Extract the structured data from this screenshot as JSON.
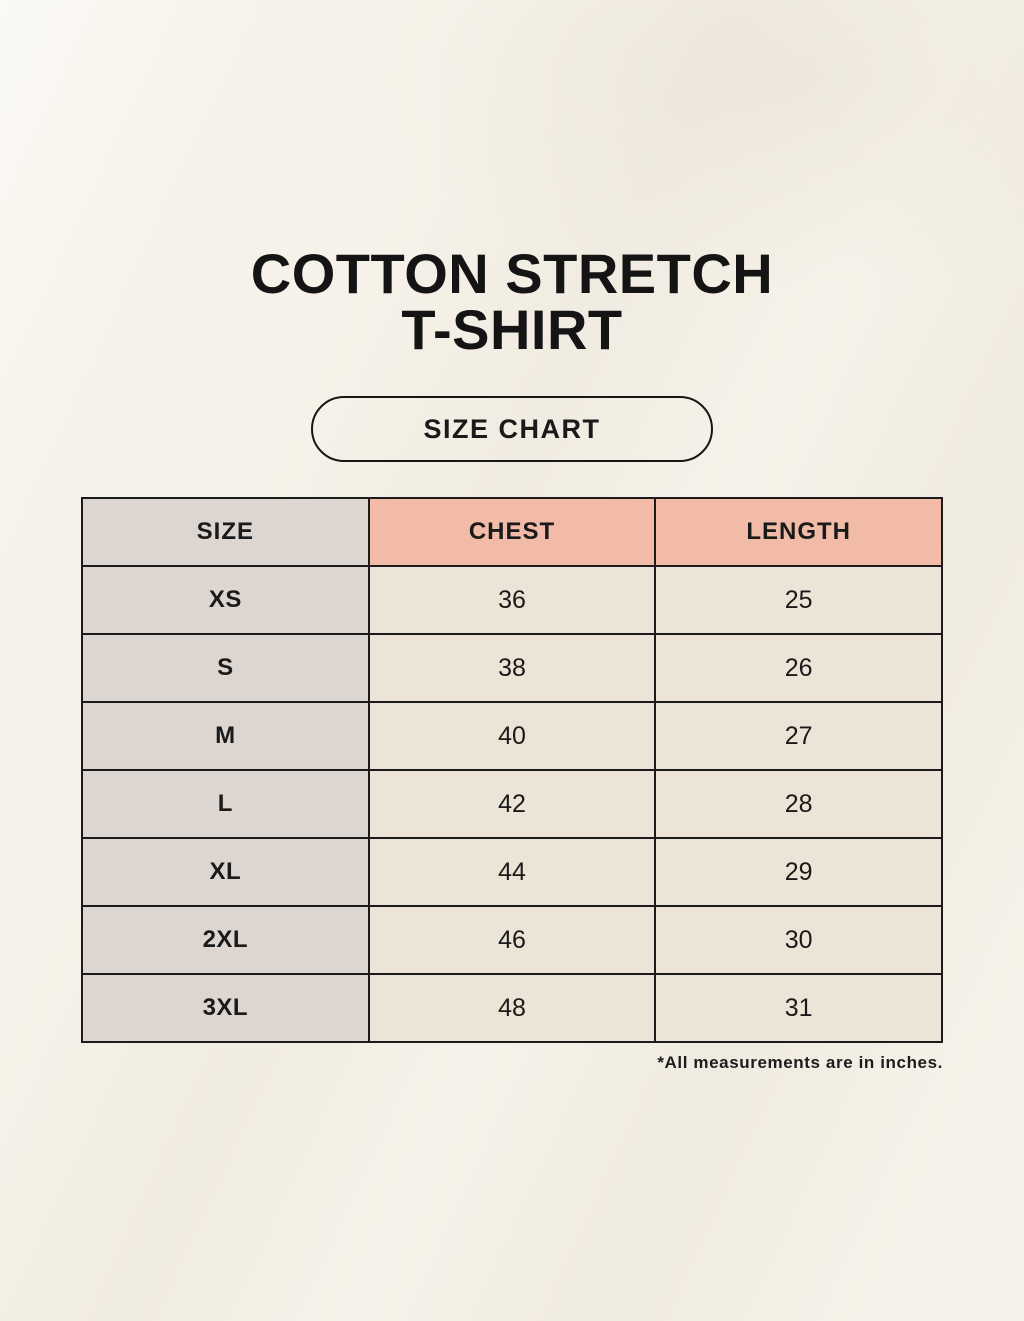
{
  "page": {
    "title_lines": [
      "COTTON STRETCH",
      "T-SHIRT"
    ],
    "badge_label": "SIZE CHART",
    "footnote": "*All measurements are in inches."
  },
  "colors": {
    "background": "#f6f2e9",
    "header_pink": "#f2bba8",
    "column_taupe": "#ddd6d0",
    "cell_cream": "#ece4d6",
    "border_black": "#1b1b1b",
    "text_black": "#1a1a1a"
  },
  "chart_data": {
    "type": "table",
    "title": "COTTON STRETCH T-SHIRT",
    "subtitle": "SIZE CHART",
    "columns": [
      "SIZE",
      "CHEST",
      "LENGTH"
    ],
    "rows": [
      [
        "XS",
        36,
        25
      ],
      [
        "S",
        38,
        26
      ],
      [
        "M",
        40,
        27
      ],
      [
        "L",
        42,
        28
      ],
      [
        "XL",
        44,
        29
      ],
      [
        "2XL",
        46,
        30
      ],
      [
        "3XL",
        48,
        31
      ]
    ],
    "footnote": "*All measurements are in inches.",
    "units": "inches"
  }
}
